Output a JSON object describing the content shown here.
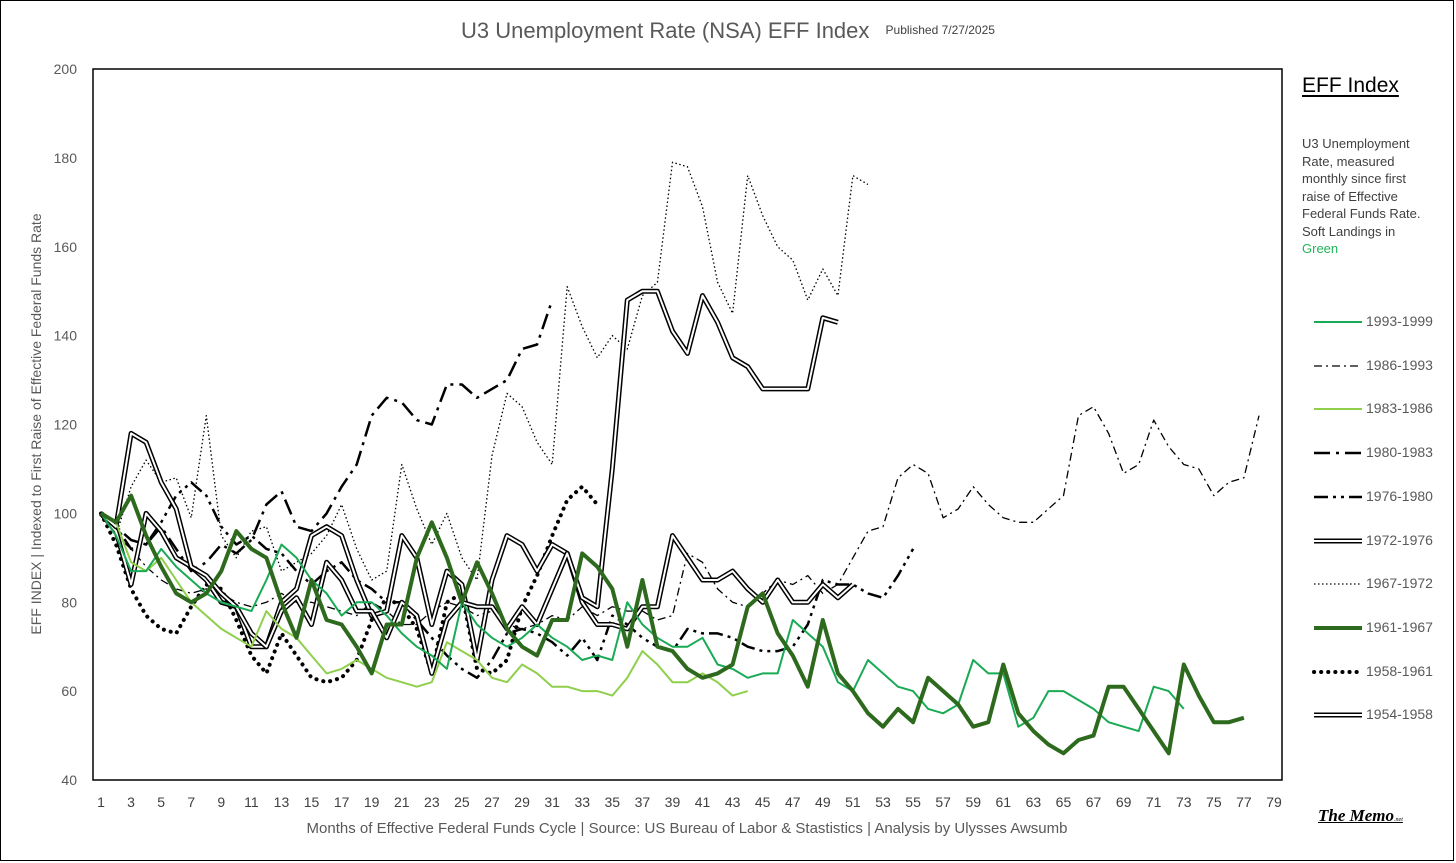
{
  "title": "U3 Unemployment Rate (NSA) EFF Index",
  "published": "Published 7/27/2025",
  "side_title": "EFF Index",
  "side_desc_main": "U3 Unemployment Rate, measured monthly since first raise of Effective Federal Funds Rate. Soft Landings in ",
  "side_desc_green": "Green",
  "brand": "The Memo",
  "brand_suffix": ".net",
  "colors": {
    "green_bright": "#1aaa55",
    "green_light": "#8fcf4c",
    "green_dark": "#2e6a1e",
    "black": "#000000"
  },
  "chart_data": {
    "type": "line",
    "title": "U3 Unemployment Rate (NSA) EFF Index",
    "xlabel": "Months of Effective Federal Funds Cycle  |  Source: US Bureau of Labor & Stastistics  |  Analysis by Ulysses Awsumb",
    "ylabel": "EFF INDEX | Indexed to First Raise of Effective Federal Funds Rate",
    "xlim": [
      1,
      79
    ],
    "ylim": [
      40,
      200
    ],
    "x_ticks": [
      1,
      3,
      5,
      7,
      9,
      11,
      13,
      15,
      17,
      19,
      21,
      23,
      25,
      27,
      29,
      31,
      33,
      35,
      37,
      39,
      41,
      43,
      45,
      47,
      49,
      51,
      53,
      55,
      57,
      59,
      61,
      63,
      65,
      67,
      69,
      71,
      73,
      75,
      77,
      79
    ],
    "y_ticks": [
      40,
      60,
      80,
      100,
      120,
      140,
      160,
      180,
      200
    ],
    "series": [
      {
        "name": "1993-1999",
        "style": "green-bright",
        "values": [
          100,
          95,
          87,
          87,
          92,
          88,
          85,
          82,
          80,
          79,
          78,
          85,
          93,
          90,
          85,
          82,
          77,
          80,
          80,
          77,
          73,
          70,
          68,
          65,
          80,
          75,
          72,
          70,
          72,
          75,
          72,
          70,
          67,
          68,
          67,
          80,
          75,
          72,
          70,
          70,
          72,
          66,
          65,
          63,
          64,
          64,
          76,
          73,
          70,
          62,
          60,
          67,
          64,
          61,
          60,
          56,
          55,
          57,
          67,
          64,
          64,
          52,
          54,
          60,
          60,
          58,
          56,
          53,
          52,
          51,
          61,
          60,
          56
        ]
      },
      {
        "name": "1986-1993",
        "style": "dash-dot-thin",
        "values": [
          100,
          95,
          92,
          88,
          85,
          83,
          82,
          83,
          82,
          80,
          79,
          80,
          82,
          80,
          80,
          79,
          78,
          77,
          80,
          78,
          75,
          75,
          78,
          80,
          79,
          77,
          78,
          75,
          74,
          75,
          77,
          76,
          79,
          77,
          79,
          78,
          78,
          76,
          77,
          91,
          89,
          83,
          80,
          79,
          82,
          85,
          84,
          86,
          82,
          84,
          90,
          96,
          97,
          108,
          111,
          109,
          99,
          101,
          106,
          102,
          99,
          98,
          98,
          101,
          104,
          122,
          124,
          118,
          109,
          111,
          121,
          115,
          111,
          110,
          104,
          107,
          108,
          122
        ]
      },
      {
        "name": "1983-1986",
        "style": "green-light",
        "values": [
          100,
          98,
          89,
          87,
          90,
          85,
          80,
          77,
          74,
          72,
          70,
          78,
          74,
          72,
          68,
          64,
          65,
          67,
          65,
          63,
          62,
          61,
          62,
          71,
          69,
          67,
          63,
          62,
          66,
          64,
          61,
          61,
          60,
          60,
          59,
          63,
          69,
          66,
          62,
          62,
          64,
          62,
          59,
          60
        ]
      },
      {
        "name": "1980-1983",
        "style": "long-dash-dot",
        "values": [
          100,
          97,
          94,
          93,
          97,
          92,
          87,
          89,
          93,
          91,
          94,
          102,
          105,
          97,
          96,
          100,
          106,
          111,
          122,
          126,
          125,
          121,
          120,
          129,
          129,
          126,
          128,
          130,
          137,
          138,
          148
        ]
      },
      {
        "name": "1976-1980",
        "style": "long-dash-dot-dot",
        "values": [
          100,
          97,
          92,
          93,
          98,
          104,
          107,
          104,
          97,
          93,
          95,
          92,
          91,
          87,
          84,
          87,
          89,
          85,
          83,
          80,
          80,
          76,
          72,
          68,
          65,
          63,
          67,
          73,
          74,
          73,
          71,
          68,
          72,
          67,
          77,
          75,
          72,
          70,
          69,
          74,
          73,
          73,
          72,
          70,
          69,
          69,
          70,
          75,
          85,
          84,
          84,
          82,
          81,
          86,
          92
        ]
      },
      {
        "name": "1972-1976",
        "style": "double",
        "values": [
          100,
          96,
          84,
          100,
          96,
          90,
          88,
          85,
          80,
          79,
          70,
          70,
          80,
          83,
          95,
          97,
          95,
          85,
          77,
          78,
          95,
          90,
          75,
          87,
          84,
          67,
          85,
          95,
          93,
          87,
          93,
          91,
          80,
          75,
          75,
          74,
          79,
          79,
          95,
          90,
          85,
          85,
          87,
          83,
          80,
          85,
          80,
          80,
          84,
          81,
          84
        ]
      },
      {
        "name": "1967-1972",
        "style": "dotted-thin",
        "values": [
          100,
          95,
          106,
          112,
          107,
          108,
          99,
          122,
          95,
          90,
          96,
          97,
          87,
          89,
          91,
          95,
          102,
          92,
          85,
          87,
          111,
          101,
          93,
          100,
          90,
          85,
          113,
          127,
          124,
          116,
          111,
          151,
          142,
          135,
          140,
          137,
          149,
          152,
          179,
          178,
          169,
          152,
          145,
          176,
          167,
          160,
          157,
          148,
          155,
          149,
          176,
          174
        ]
      },
      {
        "name": "1961-1967",
        "style": "green-dark-thick",
        "values": [
          100,
          98,
          104,
          95,
          88,
          82,
          80,
          82,
          87,
          96,
          92,
          90,
          80,
          72,
          85,
          76,
          75,
          70,
          64,
          75,
          75,
          90,
          98,
          90,
          80,
          89,
          82,
          74,
          70,
          68,
          76,
          76,
          91,
          88,
          83,
          70,
          85,
          70,
          69,
          65,
          63,
          64,
          66,
          79,
          82,
          73,
          68,
          61,
          76,
          64,
          60,
          55,
          52,
          56,
          53,
          63,
          60,
          57,
          52,
          53,
          66,
          55,
          51,
          48,
          46,
          49,
          50,
          61,
          61,
          56,
          51,
          46,
          66,
          59,
          53,
          53,
          54
        ]
      },
      {
        "name": "1958-1961",
        "style": "dotted-thick",
        "values": [
          100,
          93,
          83,
          77,
          74,
          73,
          79,
          84,
          83,
          76,
          68,
          64,
          73,
          68,
          63,
          62,
          63,
          67,
          76,
          81,
          79,
          74,
          64,
          80,
          82,
          65,
          64,
          67,
          79,
          86,
          95,
          103,
          106,
          102
        ]
      },
      {
        "name": "1954-1958",
        "style": "double",
        "values": [
          100,
          97,
          118,
          116,
          107,
          101,
          88,
          86,
          82,
          79,
          73,
          70,
          78,
          81,
          75,
          89,
          85,
          78,
          78,
          72,
          80,
          77,
          64,
          76,
          80,
          79,
          79,
          74,
          79,
          75,
          83,
          91,
          81,
          79,
          110,
          148,
          150,
          150,
          141,
          136,
          149,
          143,
          135,
          133,
          128,
          128,
          128,
          128,
          144,
          143
        ]
      }
    ]
  }
}
